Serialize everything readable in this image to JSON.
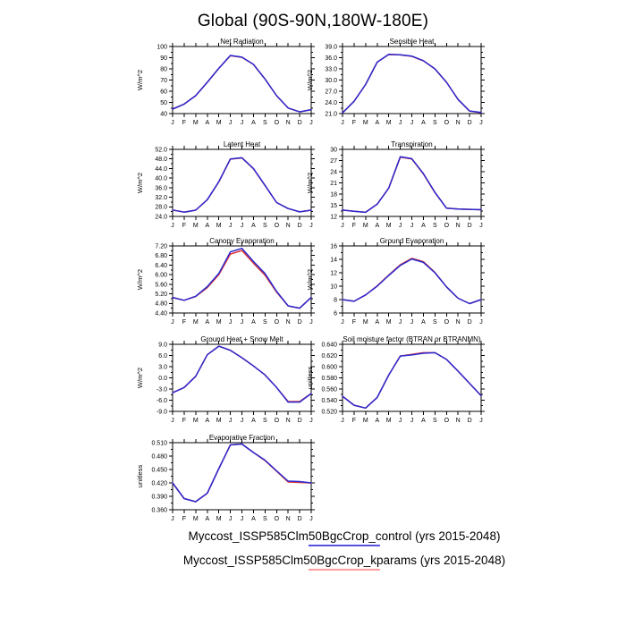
{
  "page_title": "Global (90S-90N,180W-180E)",
  "months": [
    "J",
    "F",
    "M",
    "A",
    "M",
    "J",
    "J",
    "A",
    "S",
    "O",
    "N",
    "D",
    "J"
  ],
  "series_colors": {
    "control": "#2a28d0",
    "kparams": "#e03838"
  },
  "legend": {
    "entries": [
      {
        "name": "control",
        "label": "Myccost_ISSP585Clm50BgcCrop_control (yrs 2015-2048)",
        "line_color": "#5353dd"
      },
      {
        "name": "kparams",
        "label": "Myccost_ISSP585Clm50BgcCrop_kparams (yrs 2015-2048)",
        "line_color": "#ff9c9c"
      }
    ]
  },
  "chart_data": [
    {
      "type": "line",
      "title": "Net Radiation",
      "ylabel": "W/m^2",
      "grid": {
        "row": 0,
        "col": 0
      },
      "categories": [
        "J",
        "F",
        "M",
        "A",
        "M",
        "J",
        "J",
        "A",
        "S",
        "O",
        "N",
        "D",
        "J"
      ],
      "ylim": [
        40,
        100
      ],
      "yticks": [
        40,
        50,
        60,
        70,
        80,
        90,
        100
      ],
      "ytick_decimals": 0,
      "series": [
        {
          "name": "control",
          "values": [
            44,
            48.5,
            56,
            68,
            80.5,
            92,
            90.5,
            84,
            71,
            56,
            45,
            41.5,
            43.5
          ]
        },
        {
          "name": "kparams",
          "values": [
            44,
            48.5,
            56,
            68,
            80.5,
            91.8,
            90.3,
            84,
            71,
            56,
            45,
            41.5,
            43.5
          ]
        }
      ]
    },
    {
      "type": "line",
      "title": "Sensible Heat",
      "ylabel": "W/m^2",
      "grid": {
        "row": 0,
        "col": 1
      },
      "categories": [
        "J",
        "F",
        "M",
        "A",
        "M",
        "J",
        "J",
        "A",
        "S",
        "O",
        "N",
        "D",
        "J"
      ],
      "ylim": [
        21,
        39
      ],
      "yticks": [
        21,
        24,
        27,
        30,
        33,
        36,
        39
      ],
      "ytick_decimals": 1,
      "series": [
        {
          "name": "control",
          "values": [
            21.2,
            24.3,
            28.8,
            34.8,
            36.9,
            36.8,
            36.4,
            35.2,
            33.0,
            29.4,
            24.8,
            21.7,
            21.3
          ]
        },
        {
          "name": "kparams",
          "values": [
            21.2,
            24.3,
            28.8,
            34.8,
            36.85,
            36.75,
            36.35,
            35.15,
            33.0,
            29.4,
            24.8,
            21.65,
            21.25
          ]
        }
      ]
    },
    {
      "type": "line",
      "title": "Latent Heat",
      "ylabel": "W/m^2",
      "grid": {
        "row": 1,
        "col": 0
      },
      "categories": [
        "J",
        "F",
        "M",
        "A",
        "M",
        "J",
        "J",
        "A",
        "S",
        "O",
        "N",
        "D",
        "J"
      ],
      "ylim": [
        24,
        52
      ],
      "yticks": [
        24,
        28,
        32,
        36,
        40,
        44,
        48,
        52
      ],
      "ytick_decimals": 1,
      "series": [
        {
          "name": "control",
          "values": [
            26.7,
            25.8,
            26.6,
            31.0,
            38.5,
            48.0,
            48.5,
            44.0,
            37.0,
            29.8,
            27.3,
            25.9,
            26.6
          ]
        },
        {
          "name": "kparams",
          "values": [
            26.7,
            25.8,
            26.6,
            31.0,
            38.4,
            47.9,
            48.4,
            43.9,
            36.9,
            29.8,
            27.3,
            25.9,
            26.6
          ]
        }
      ]
    },
    {
      "type": "line",
      "title": "Transpiration",
      "ylabel": "W/m^2",
      "grid": {
        "row": 1,
        "col": 1
      },
      "categories": [
        "J",
        "F",
        "M",
        "A",
        "M",
        "J",
        "J",
        "A",
        "S",
        "O",
        "N",
        "D",
        "J"
      ],
      "ylim": [
        12,
        30
      ],
      "yticks": [
        12,
        15,
        18,
        21,
        24,
        27,
        30
      ],
      "ytick_decimals": 0,
      "series": [
        {
          "name": "control",
          "values": [
            13.7,
            13.4,
            13.1,
            15.3,
            19.6,
            28.0,
            27.5,
            23.5,
            18.5,
            14.2,
            14.0,
            13.9,
            13.8
          ]
        },
        {
          "name": "kparams",
          "values": [
            13.7,
            13.4,
            13.1,
            15.3,
            19.6,
            27.9,
            27.4,
            23.4,
            18.4,
            14.2,
            14.0,
            13.9,
            13.8
          ]
        }
      ]
    },
    {
      "type": "line",
      "title": "Canopy Evaporation",
      "ylabel": "W/m^2",
      "grid": {
        "row": 2,
        "col": 0
      },
      "categories": [
        "J",
        "F",
        "M",
        "A",
        "M",
        "J",
        "J",
        "A",
        "S",
        "O",
        "N",
        "D",
        "J"
      ],
      "ylim": [
        4.4,
        7.2
      ],
      "yticks": [
        4.4,
        4.8,
        5.2,
        5.6,
        6.0,
        6.4,
        6.8,
        7.2
      ],
      "ytick_decimals": 2,
      "series": [
        {
          "name": "control",
          "values": [
            5.05,
            4.93,
            5.1,
            5.5,
            6.05,
            6.95,
            7.1,
            6.55,
            6.05,
            5.3,
            4.7,
            4.6,
            5.05
          ]
        },
        {
          "name": "kparams",
          "values": [
            5.05,
            4.93,
            5.09,
            5.46,
            6.0,
            6.86,
            7.01,
            6.48,
            5.98,
            5.27,
            4.69,
            4.6,
            5.05
          ]
        }
      ]
    },
    {
      "type": "line",
      "title": "Ground Evaporation",
      "ylabel": "W/m^2",
      "grid": {
        "row": 2,
        "col": 1
      },
      "categories": [
        "J",
        "F",
        "M",
        "A",
        "M",
        "J",
        "J",
        "A",
        "S",
        "O",
        "N",
        "D",
        "J"
      ],
      "ylim": [
        6,
        16
      ],
      "yticks": [
        6,
        8,
        10,
        12,
        14,
        16
      ],
      "ytick_decimals": 0,
      "series": [
        {
          "name": "control",
          "values": [
            8.0,
            7.75,
            8.7,
            10.0,
            11.6,
            13.1,
            14.05,
            13.55,
            12.0,
            9.9,
            8.2,
            7.4,
            8.0
          ]
        },
        {
          "name": "kparams",
          "values": [
            8.0,
            7.75,
            8.7,
            10.05,
            11.65,
            13.2,
            14.15,
            13.65,
            12.05,
            9.9,
            8.2,
            7.4,
            8.0
          ]
        }
      ]
    },
    {
      "type": "line",
      "title": "Ground Heat + Snow Melt",
      "ylabel": "W/m^2",
      "grid": {
        "row": 3,
        "col": 0
      },
      "categories": [
        "J",
        "F",
        "M",
        "A",
        "M",
        "J",
        "J",
        "A",
        "S",
        "O",
        "N",
        "D",
        "J"
      ],
      "ylim": [
        -9,
        9
      ],
      "yticks": [
        -9,
        -6,
        -3,
        0,
        3,
        6,
        9
      ],
      "ytick_decimals": 1,
      "series": [
        {
          "name": "control",
          "values": [
            -4.0,
            -2.6,
            0.4,
            6.2,
            8.5,
            7.4,
            5.4,
            3.2,
            0.8,
            -2.6,
            -6.5,
            -6.5,
            -4.2
          ]
        },
        {
          "name": "kparams",
          "values": [
            -4.0,
            -2.6,
            0.4,
            6.2,
            8.5,
            7.4,
            5.4,
            3.2,
            0.8,
            -2.6,
            -6.35,
            -6.35,
            -4.2
          ]
        }
      ]
    },
    {
      "type": "line",
      "title": "Soil moisture factor (BTRAN or BTRANMN)",
      "ylabel": "unitless",
      "grid": {
        "row": 3,
        "col": 1
      },
      "categories": [
        "J",
        "F",
        "M",
        "A",
        "M",
        "J",
        "J",
        "A",
        "S",
        "O",
        "N",
        "D",
        "J"
      ],
      "ylim": [
        0.52,
        0.64
      ],
      "yticks": [
        0.52,
        0.54,
        0.56,
        0.58,
        0.6,
        0.62,
        0.64
      ],
      "ytick_decimals": 3,
      "series": [
        {
          "name": "control",
          "values": [
            0.547,
            0.531,
            0.526,
            0.545,
            0.585,
            0.619,
            0.621,
            0.624,
            0.625,
            0.613,
            0.592,
            0.57,
            0.548
          ]
        },
        {
          "name": "kparams",
          "values": [
            0.547,
            0.531,
            0.526,
            0.545,
            0.585,
            0.619,
            0.622,
            0.625,
            0.625,
            0.613,
            0.592,
            0.57,
            0.548
          ]
        }
      ]
    },
    {
      "type": "line",
      "title": "Evaporative Fraction",
      "ylabel": "unitless",
      "grid": {
        "row": 4,
        "col": 0
      },
      "categories": [
        "J",
        "F",
        "M",
        "A",
        "M",
        "J",
        "J",
        "A",
        "S",
        "O",
        "N",
        "D",
        "J"
      ],
      "ylim": [
        0.36,
        0.51
      ],
      "yticks": [
        0.36,
        0.39,
        0.42,
        0.45,
        0.48,
        0.51
      ],
      "ytick_decimals": 3,
      "series": [
        {
          "name": "control",
          "values": [
            0.42,
            0.385,
            0.378,
            0.397,
            0.452,
            0.505,
            0.507,
            0.488,
            0.471,
            0.447,
            0.424,
            0.423,
            0.42
          ]
        },
        {
          "name": "kparams",
          "values": [
            0.42,
            0.385,
            0.378,
            0.397,
            0.452,
            0.505,
            0.507,
            0.488,
            0.47,
            0.446,
            0.422,
            0.421,
            0.42
          ]
        }
      ]
    }
  ]
}
